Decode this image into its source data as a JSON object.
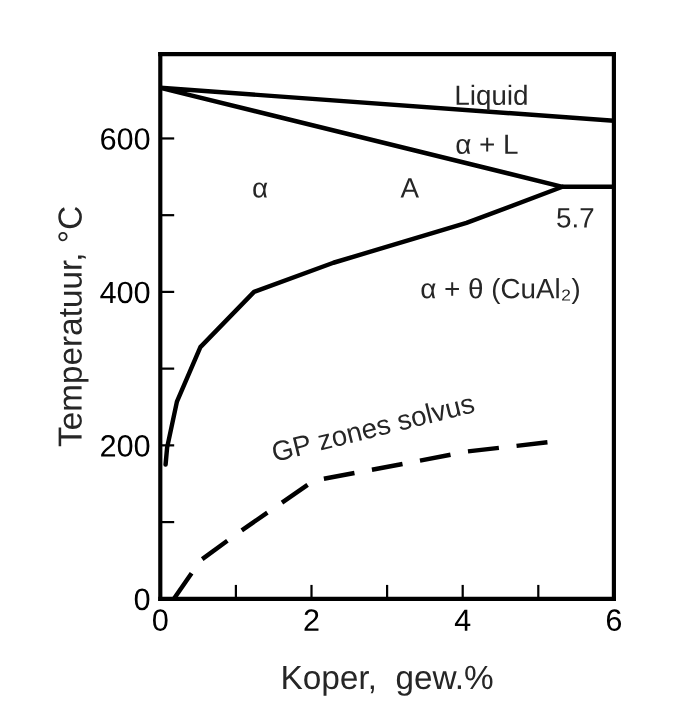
{
  "chart_data": {
    "type": "line",
    "xlabel": "Koper,  gew.%",
    "ylabel": "Temperatuur, °C",
    "xlim": [
      0,
      6
    ],
    "ylim": [
      0,
      710
    ],
    "xticks": [
      0,
      {
        "value": 1,
        "label": null
      },
      2,
      {
        "value": 3,
        "label": null
      },
      4,
      {
        "value": 5,
        "label": null
      },
      6
    ],
    "yticks": [
      0,
      {
        "value": 100,
        "label": null
      },
      200,
      {
        "value": 300,
        "label": null
      },
      400,
      {
        "value": 500,
        "label": null
      },
      600
    ],
    "grid": false,
    "marker": "none",
    "series": [
      {
        "color": "#000000",
        "line_style": "solid",
        "x": [
          6,
          0,
          5.32,
          6
        ],
        "values": [
          623,
          666,
          537,
          537
        ]
      },
      {
        "color": "#000000",
        "line_style": "solid",
        "x": [
          5.32,
          4.05,
          2.29,
          1.24,
          0.53,
          0.22,
          0.09,
          0.07
        ],
        "values": [
          537,
          490,
          438,
          400,
          328,
          257,
          197,
          175
        ]
      },
      {
        "color": "#000000",
        "line_style": "dashed",
        "x": [
          0.18,
          0.53,
          1.06,
          2.03,
          3.17,
          4.06,
          5.21
        ],
        "values": [
          0,
          50,
          88,
          154,
          175,
          192,
          205
        ]
      }
    ],
    "annotations": [
      "Liquid",
      "α + L",
      "α",
      "A",
      "5.7",
      "α + θ (CuAl₂)",
      "GP zones solvus"
    ]
  }
}
